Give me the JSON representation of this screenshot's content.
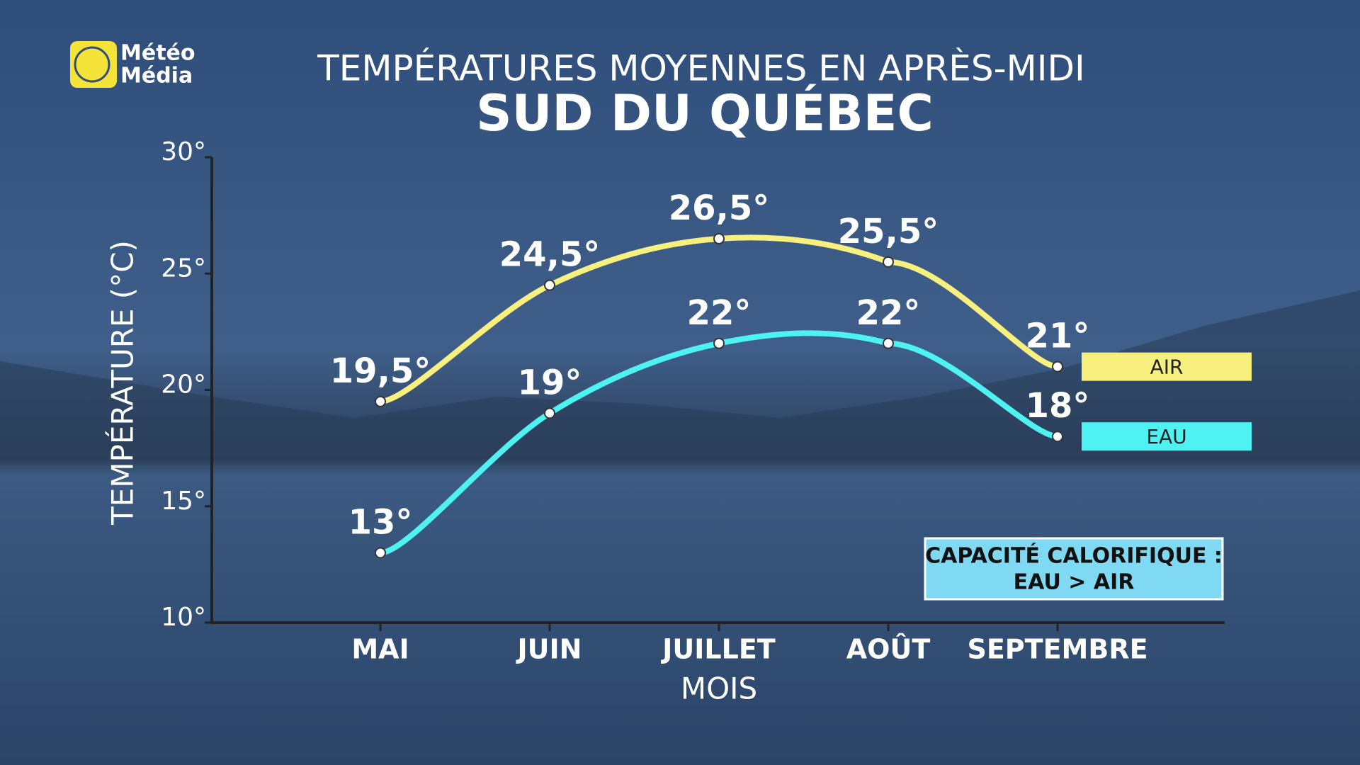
{
  "logo": [
    "Météo",
    "Média"
  ],
  "chart_data": {
    "type": "line",
    "title": "TEMPÉRATURES MOYENNES EN APRÈS-MIDI",
    "subtitle": "SUD DU QUÉBEC",
    "x_label": "MOIS",
    "y_label": "TEMPÉRATURE (°C)",
    "categories": [
      "MAI",
      "JUIN",
      "JUILLET",
      "AOÛT",
      "SEPTEMBRE"
    ],
    "series": [
      {
        "name": "AIR",
        "color": "#f7ef7e",
        "values": [
          19.5,
          24.5,
          26.5,
          25.5,
          21
        ],
        "value_labels": [
          "19,5°",
          "24,5°",
          "26,5°",
          "25,5°",
          "21°"
        ]
      },
      {
        "name": "EAU",
        "color": "#4ef2f2",
        "values": [
          13,
          19,
          22,
          22,
          18
        ],
        "value_labels": [
          "13°",
          "19°",
          "22°",
          "22°",
          "18°"
        ]
      }
    ],
    "ylim": [
      10,
      30
    ],
    "yticks": [
      {
        "value": 10,
        "label": "10°"
      },
      {
        "value": 15,
        "label": "15°"
      },
      {
        "value": 20,
        "label": "20°"
      },
      {
        "value": 25,
        "label": "25°"
      },
      {
        "value": 30,
        "label": "30°"
      }
    ],
    "annotation": [
      "CAPACITÉ CALORIFIQUE :",
      "EAU > AIR"
    ]
  }
}
